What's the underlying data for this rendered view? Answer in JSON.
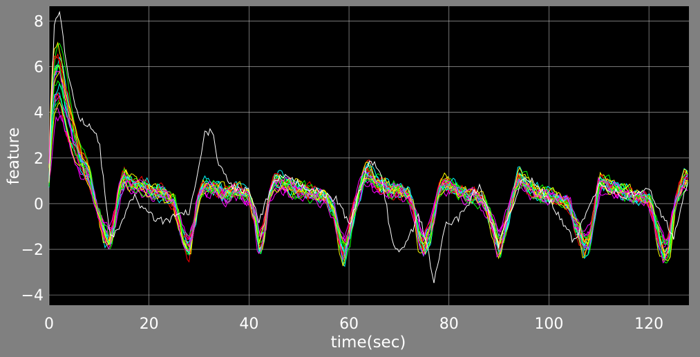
{
  "chart_data": {
    "type": "line",
    "xlabel": "time(sec)",
    "ylabel": "feature",
    "xlim": [
      0,
      128
    ],
    "ylim": [
      -4.45,
      8.65
    ],
    "xticks": [
      0,
      20,
      40,
      60,
      80,
      100,
      120
    ],
    "xtick_labels": [
      "0",
      "20",
      "40",
      "60",
      "80",
      "100",
      "120"
    ],
    "yticks": [
      -4,
      -2,
      0,
      2,
      4,
      6,
      8
    ],
    "ytick_labels": [
      "−4",
      "−2",
      "0",
      "2",
      "4",
      "6",
      "8"
    ],
    "grid": true,
    "legend": "none",
    "plot_background": "#000000",
    "figure_background": "#808080",
    "grid_color": "#bfbfbf",
    "series_colors": [
      "#ff00ff",
      "#00ffff",
      "#ffff00",
      "#00ff00",
      "#ff0000",
      "#ff00ff",
      "#00ffff",
      "#ffff00",
      "#00ff00",
      "#ff0000",
      "#ff00ff",
      "#00ffff",
      "#ffff00",
      "#00ff00",
      "#ff0000",
      "#ff00ff",
      "#00ffff",
      "#ffff00",
      "#00ff00",
      "#ff00ff"
    ],
    "series_count_estimate": 20,
    "typical_series": {
      "x": [
        0,
        1,
        2,
        4,
        6,
        8,
        10,
        11,
        12,
        13,
        14,
        15,
        17,
        20,
        23,
        25,
        26,
        27,
        28,
        29,
        30,
        31,
        33,
        35,
        38,
        40,
        41,
        42,
        43,
        44,
        45,
        46,
        48,
        50,
        53,
        55,
        57,
        58,
        59,
        60,
        61,
        62,
        63,
        64,
        65,
        66,
        68,
        70,
        72,
        73,
        74,
        75,
        76,
        77,
        78,
        79,
        80,
        82,
        85,
        87,
        88,
        89,
        90,
        91,
        93,
        94,
        95,
        97,
        100,
        102,
        104,
        105,
        106,
        107,
        108,
        109,
        110,
        112,
        115,
        118,
        120,
        121,
        122,
        123,
        124,
        125,
        126,
        127,
        128
      ],
      "y": [
        1.0,
        3.5,
        4.0,
        2.4,
        1.3,
        0.8,
        -0.5,
        -1.3,
        -1.6,
        -0.8,
        0.6,
        1.1,
        0.8,
        0.6,
        0.4,
        0.1,
        -0.8,
        -1.6,
        -1.9,
        -0.9,
        0.3,
        0.8,
        0.6,
        0.4,
        0.5,
        0.3,
        -0.5,
        -1.8,
        -1.2,
        0.2,
        0.9,
        1.0,
        0.7,
        0.6,
        0.4,
        0.3,
        -0.3,
        -1.5,
        -2.2,
        -1.4,
        -0.2,
        0.5,
        1.2,
        1.4,
        1.0,
        0.8,
        0.6,
        0.5,
        0.4,
        -0.3,
        -1.5,
        -1.8,
        -1.3,
        -0.5,
        0.5,
        0.9,
        0.8,
        0.5,
        0.3,
        0.1,
        -0.5,
        -1.2,
        -1.9,
        -1.2,
        0.5,
        1.2,
        0.9,
        0.5,
        0.3,
        0.2,
        0.0,
        -0.8,
        -1.2,
        -1.8,
        -1.6,
        -0.5,
        0.9,
        0.8,
        0.5,
        0.3,
        0.2,
        -0.6,
        -1.5,
        -2.0,
        -1.8,
        -0.4,
        0.5,
        1.0,
        1.1
      ]
    },
    "outlier_series": {
      "color": "#ffffff",
      "x": [
        0,
        1,
        2,
        4,
        6,
        8,
        10,
        12,
        13,
        15,
        17,
        20,
        23,
        26,
        28,
        30,
        31,
        32,
        33,
        34,
        36,
        38,
        40,
        42,
        44,
        46,
        50,
        55,
        58,
        60,
        62,
        64,
        66,
        67,
        68,
        69,
        70,
        72,
        74,
        76,
        77,
        78,
        79,
        80,
        82,
        86,
        90,
        95,
        100,
        105,
        110,
        115,
        120,
        125,
        128
      ],
      "y": [
        1.0,
        7.8,
        8.4,
        5.5,
        3.6,
        3.5,
        2.8,
        -1.2,
        -1.5,
        -0.5,
        0.3,
        -0.5,
        -0.8,
        -0.5,
        -0.4,
        1.5,
        3.0,
        3.2,
        2.8,
        1.7,
        0.9,
        0.6,
        0.6,
        -0.8,
        0.4,
        1.2,
        0.9,
        0.4,
        0.1,
        -1.0,
        0.5,
        1.8,
        1.6,
        0.5,
        -0.8,
        -1.9,
        -2.2,
        -1.5,
        -0.5,
        -2.2,
        -3.5,
        -2.5,
        -1.0,
        -0.9,
        -0.6,
        0.8,
        -1.8,
        1.3,
        0.2,
        -1.7,
        0.9,
        0.3,
        0.6,
        -1.5,
        1.2
      ]
    }
  }
}
